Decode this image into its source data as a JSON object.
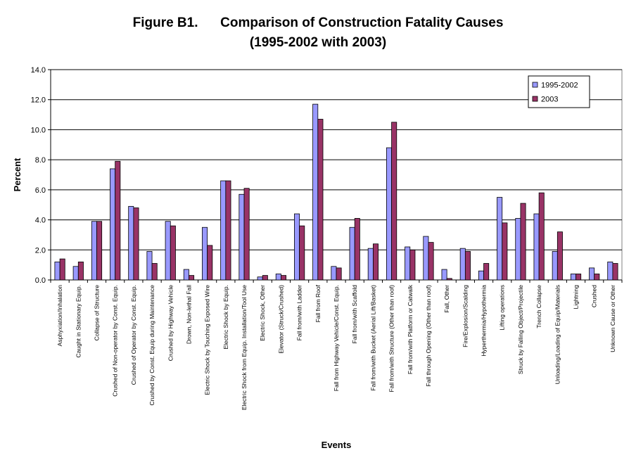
{
  "chart_data": {
    "type": "bar",
    "title": "Figure B1.      Comparison of Construction Fatality Causes",
    "subtitle": "(1995-2002 with 2003)",
    "xlabel": "Events",
    "ylabel": "Percent",
    "ylim": [
      0,
      14
    ],
    "yticks": [
      "0.0",
      "2.0",
      "4.0",
      "6.0",
      "8.0",
      "10.0",
      "12.0",
      "14.0"
    ],
    "grid": true,
    "legend_position": "top-right",
    "categories": [
      "Asphyxiation/Inhalation",
      "Caught in Stationary Equip.",
      "Collapse of Structure",
      "Crushed of Non-operator by Const. Equip.",
      "Crushed of Operator by Const. Equip.",
      "Crushed by Const. Equip during Maintenance",
      "Crushed by Highway Vehicle",
      "Drown, Non-lethal Fall",
      "Electric Shock by Touching Exposed Wire",
      "Electric Shock by Equip.",
      "Electric Shock from Equip. Installation/Tool Use",
      "Electric Shock, Other",
      "Elevator (Struck/Crushed)",
      "Fall from/with Ladder",
      "Fall from Roof",
      "Fall from Highway Vehicle/Const. Equip.",
      "Fall from/with Scaffold",
      "Fall from/with Bucket (Aerial Lift/Basket)",
      "Fall from/with Structure (Other than roof)",
      "Fall from/with Platform or Catwalk",
      "Fall through Opening (Other than roof)",
      "Fall, Other",
      "Fire/Explosion/Scalding",
      "Hyperthermia/Hypothermia",
      "Lifting operations",
      "Struck by Falling Object/Projectile",
      "Trench Collapse",
      "Unloading/Loading of Equip/Materials",
      "Lightning",
      "Crushed",
      "Unknown Cause or Other"
    ],
    "series": [
      {
        "name": "1995-2002",
        "color": "#9999FF",
        "values": [
          1.2,
          0.9,
          3.9,
          7.4,
          4.9,
          1.9,
          3.9,
          0.7,
          3.5,
          6.6,
          5.7,
          0.2,
          0.4,
          4.4,
          11.7,
          0.9,
          3.5,
          2.1,
          8.8,
          2.2,
          2.9,
          0.7,
          2.1,
          0.6,
          5.5,
          4.1,
          4.4,
          1.9,
          0.4,
          0.8,
          1.2
        ]
      },
      {
        "name": "2003",
        "color": "#993366",
        "values": [
          1.4,
          1.2,
          3.9,
          7.9,
          4.8,
          1.1,
          3.6,
          0.3,
          2.3,
          6.6,
          6.1,
          0.3,
          0.3,
          3.6,
          10.7,
          0.8,
          4.1,
          2.4,
          10.5,
          2.0,
          2.5,
          0.1,
          1.9,
          1.1,
          3.8,
          5.1,
          5.8,
          3.2,
          0.4,
          0.4,
          1.1
        ]
      }
    ]
  }
}
